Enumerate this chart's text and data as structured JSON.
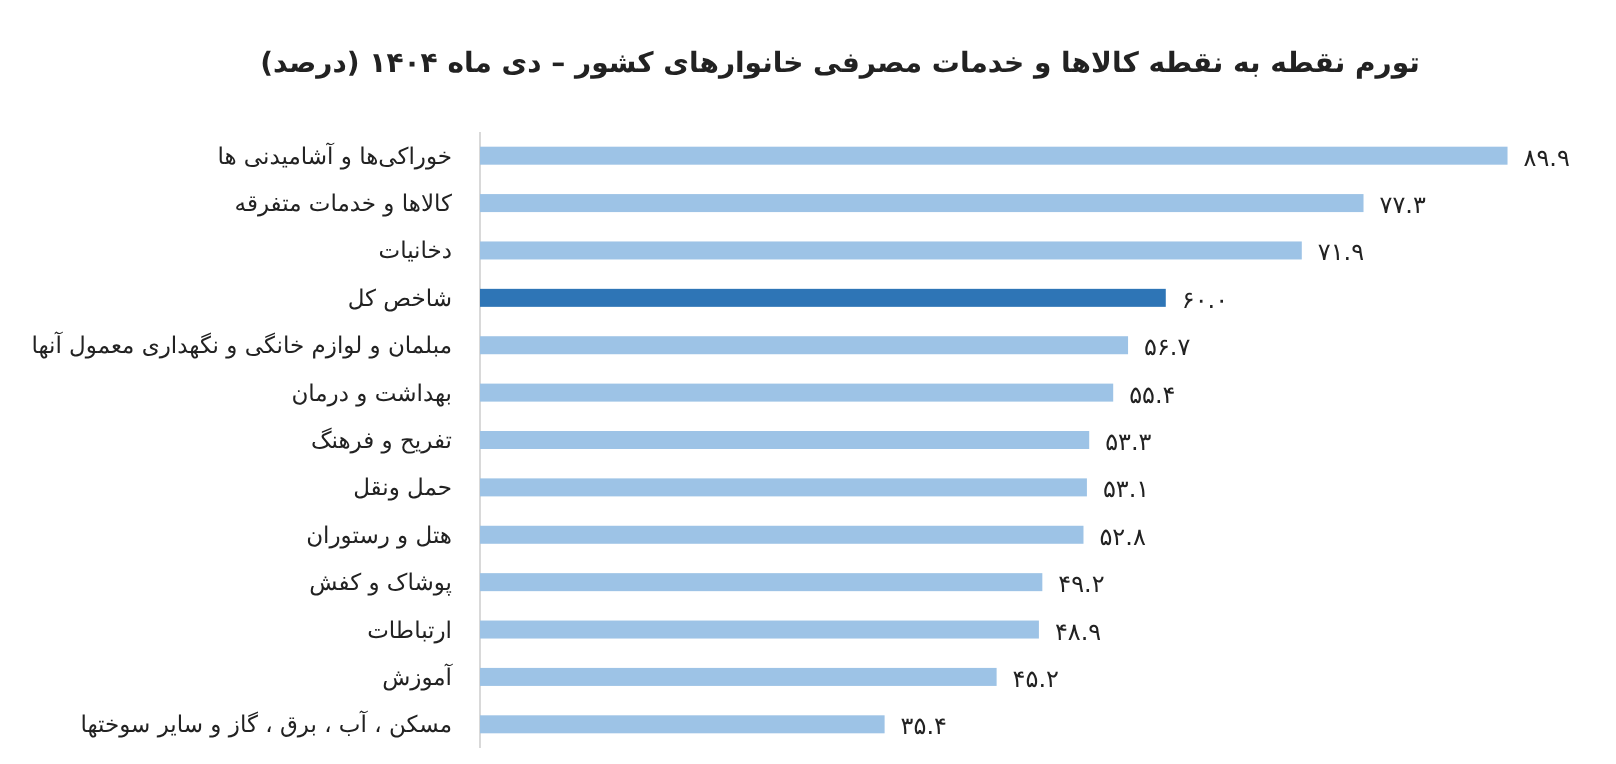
{
  "chart_data": {
    "type": "bar",
    "orientation": "horizontal",
    "title": "تورم نقطه به نقطه کالاها و خدمات مصرفی خانوارهای کشور – دی ماه ۱۴۰۴ (درصد)",
    "categories": [
      "خوراکی‌ها و آشامیدنی ها",
      "کالاها و خدمات متفرقه",
      "دخانیات",
      "شاخص کل",
      "مبلمان و لوازم خانگی و نگهداری معمول آنها",
      "بهداشت و درمان",
      "تفریح و فرهنگ",
      "حمل ونقل",
      "هتل و رستوران",
      "پوشاک و کفش",
      "ارتباطات",
      "آموزش",
      "مسکن ، آب ، برق ، گاز و سایر سوختها"
    ],
    "values": [
      89.9,
      77.3,
      71.9,
      60.0,
      56.7,
      55.4,
      53.3,
      53.1,
      52.8,
      49.2,
      48.9,
      45.2,
      35.4
    ],
    "value_labels": [
      "۸۹.۹",
      "۷۷.۳",
      "۷۱.۹",
      "۶۰.۰",
      "۵۶.۷",
      "۵۵.۴",
      "۵۳.۳",
      "۵۳.۱",
      "۵۲.۸",
      "۴۹.۲",
      "۴۸.۹",
      "۴۵.۲",
      "۳۵.۴"
    ],
    "colors": [
      "#9dc3e6",
      "#9dc3e6",
      "#9dc3e6",
      "#2e75b6",
      "#9dc3e6",
      "#9dc3e6",
      "#9dc3e6",
      "#9dc3e6",
      "#9dc3e6",
      "#9dc3e6",
      "#9dc3e6",
      "#9dc3e6",
      "#9dc3e6"
    ]
  }
}
